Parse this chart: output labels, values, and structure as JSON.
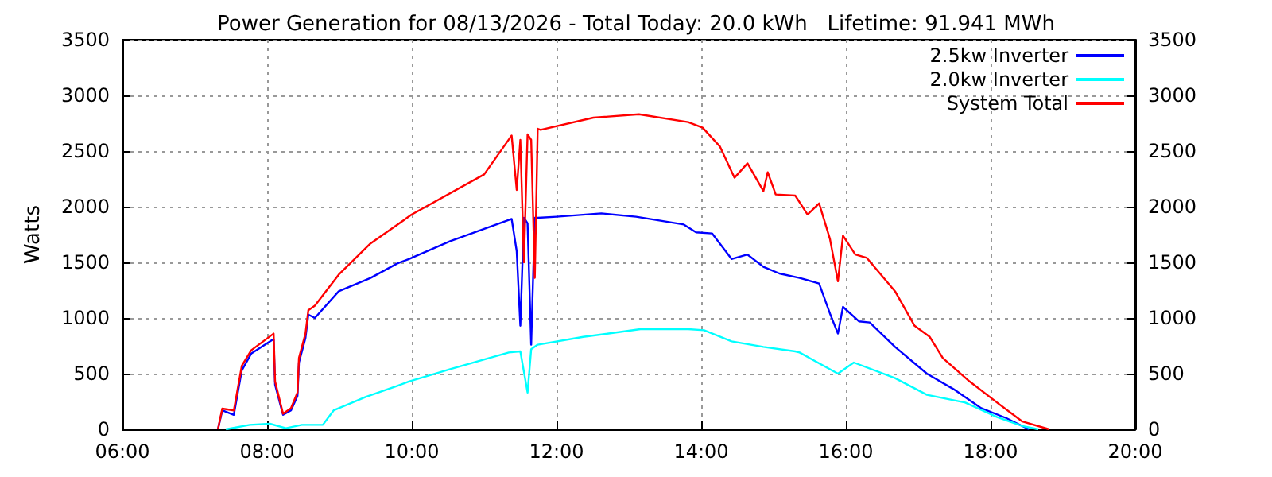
{
  "chart_data": {
    "type": "line",
    "title": "Power Generation for 08/13/2026 - Total Today: 20.0 kWh   Lifetime: 91.941 MWh",
    "ylabel": "Watts",
    "xlim": [
      6,
      20
    ],
    "xticks": [
      {
        "value": 6,
        "label": "06:00"
      },
      {
        "value": 8,
        "label": "08:00"
      },
      {
        "value": 10,
        "label": "10:00"
      },
      {
        "value": 12,
        "label": "12:00"
      },
      {
        "value": 14,
        "label": "14:00"
      },
      {
        "value": 16,
        "label": "16:00"
      },
      {
        "value": 18,
        "label": "18:00"
      },
      {
        "value": 20,
        "label": "20:00"
      }
    ],
    "ylim": [
      0,
      3500
    ],
    "yticks": [
      0,
      500,
      1000,
      1500,
      2000,
      2500,
      3000,
      3500
    ],
    "y2lim": [
      0,
      3500
    ],
    "y2ticks": [
      0,
      500,
      1000,
      1500,
      2000,
      2500,
      3000,
      3500
    ],
    "grid": true,
    "legend": "top right",
    "marker": "none",
    "series": [
      {
        "name": "2.5kw Inverter",
        "color": "#0000ff",
        "x": [
          7.32,
          7.38,
          7.54,
          7.65,
          7.78,
          8.09,
          8.11,
          8.22,
          8.33,
          8.42,
          8.44,
          8.53,
          8.57,
          8.66,
          8.99,
          9.43,
          9.8,
          9.96,
          10.53,
          11.38,
          11.45,
          11.5,
          11.55,
          11.6,
          11.65,
          11.7,
          11.74,
          12.0,
          12.62,
          13.1,
          13.76,
          13.93,
          14.15,
          14.42,
          14.64,
          14.86,
          15.08,
          15.36,
          15.63,
          15.78,
          15.89,
          15.96,
          16.18,
          16.33,
          16.68,
          17.12,
          17.49,
          17.87,
          18.22,
          18.53
        ],
        "values": [
          0,
          170,
          130,
          530,
          680,
          810,
          400,
          130,
          170,
          300,
          600,
          820,
          1030,
          1000,
          1240,
          1360,
          1490,
          1530,
          1690,
          1890,
          1600,
          930,
          1900,
          1850,
          760,
          1900,
          1900,
          1910,
          1940,
          1910,
          1840,
          1770,
          1760,
          1530,
          1570,
          1460,
          1400,
          1360,
          1310,
          1040,
          860,
          1100,
          970,
          960,
          740,
          500,
          360,
          190,
          100,
          0
        ]
      },
      {
        "name": "2.0kw Inverter",
        "color": "#00ffff",
        "x": [
          7.43,
          7.76,
          8.04,
          8.26,
          8.48,
          8.77,
          8.92,
          9.36,
          9.8,
          9.96,
          10.53,
          11.34,
          11.5,
          11.6,
          11.65,
          11.74,
          12.37,
          13.16,
          13.82,
          14.04,
          14.42,
          14.86,
          15.3,
          15.36,
          15.89,
          16.11,
          16.68,
          17.12,
          17.65,
          18.09,
          18.44,
          18.66
        ],
        "values": [
          0,
          40,
          50,
          10,
          40,
          40,
          170,
          290,
          390,
          430,
          540,
          690,
          700,
          330,
          720,
          760,
          830,
          900,
          900,
          890,
          790,
          740,
          700,
          690,
          500,
          600,
          460,
          310,
          240,
          110,
          30,
          0
        ]
      },
      {
        "name": "System Total",
        "color": "#ff0000",
        "x": [
          7.32,
          7.38,
          7.54,
          7.65,
          7.78,
          8.09,
          8.11,
          8.22,
          8.33,
          8.42,
          8.44,
          8.53,
          8.57,
          8.66,
          8.99,
          9.43,
          10.0,
          11.0,
          11.38,
          11.45,
          11.5,
          11.55,
          11.6,
          11.65,
          11.7,
          11.74,
          11.78,
          12.51,
          13.14,
          13.82,
          14.02,
          14.26,
          14.46,
          14.64,
          14.86,
          14.92,
          15.03,
          15.3,
          15.47,
          15.63,
          15.78,
          15.89,
          15.96,
          16.13,
          16.29,
          16.68,
          16.95,
          17.16,
          17.34,
          17.71,
          18.09,
          18.44,
          18.81
        ],
        "values": [
          0,
          186,
          170,
          570,
          710,
          860,
          430,
          140,
          190,
          330,
          640,
          860,
          1070,
          1110,
          1390,
          1670,
          1930,
          2290,
          2640,
          2150,
          2600,
          1500,
          2650,
          2600,
          1360,
          2700,
          2690,
          2800,
          2830,
          2760,
          2710,
          2540,
          2260,
          2390,
          2140,
          2310,
          2110,
          2100,
          1930,
          2030,
          1710,
          1330,
          1740,
          1570,
          1540,
          1240,
          930,
          830,
          640,
          430,
          240,
          70,
          0
        ]
      }
    ]
  }
}
